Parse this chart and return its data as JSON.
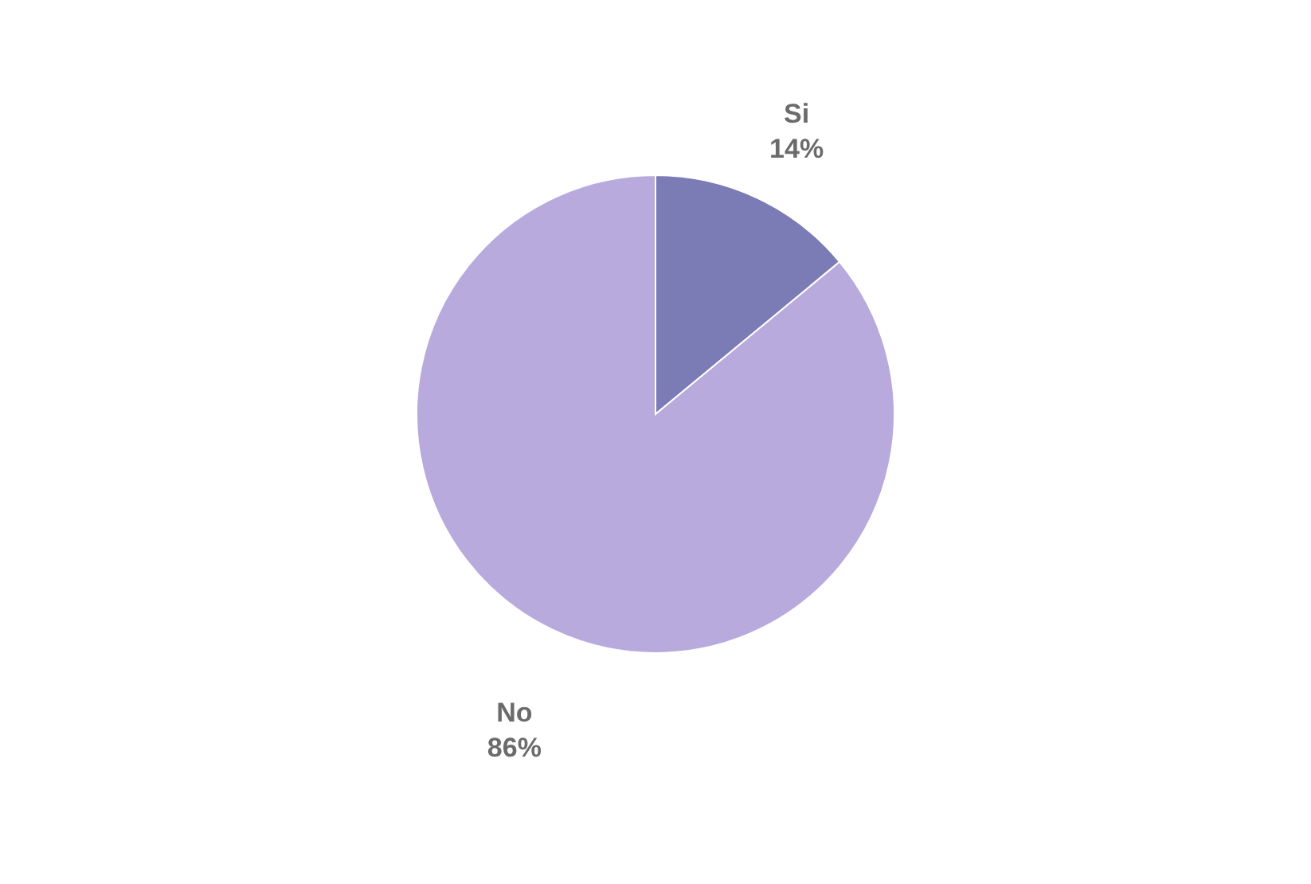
{
  "chart_data": {
    "type": "pie",
    "categories": [
      "Si",
      "No"
    ],
    "values": [
      14,
      86
    ],
    "colors": [
      "#7b7bb5",
      "#b8aadc"
    ],
    "value_labels": [
      "14%",
      "86%"
    ],
    "legend": false
  }
}
